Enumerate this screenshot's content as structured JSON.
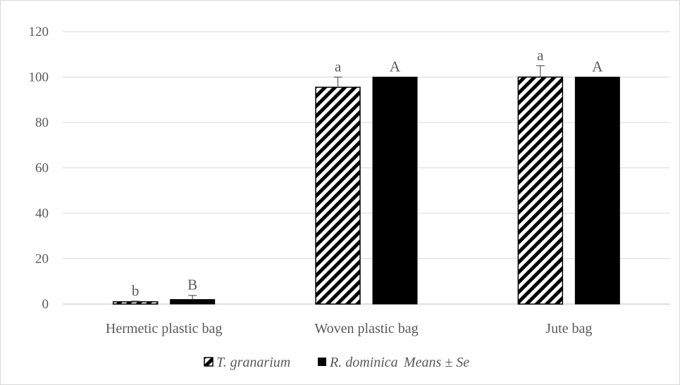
{
  "chart_data": {
    "type": "bar",
    "title": "",
    "xlabel": "",
    "ylabel": "",
    "ylim": [
      0,
      120
    ],
    "yticks": [
      0,
      20,
      40,
      60,
      80,
      100,
      120
    ],
    "grid": true,
    "legend_position": "bottom",
    "categories": [
      "Hermetic plastic bag",
      "Woven plastic bag",
      "Jute bag"
    ],
    "series": [
      {
        "name": "T. granarium",
        "pattern": "hatched",
        "values": [
          1.0,
          95.5,
          100
        ],
        "errors": [
          0.3,
          4.5,
          5.0
        ],
        "labels": [
          "b",
          "a",
          "a"
        ]
      },
      {
        "name": "R. dominica",
        "pattern": "solid",
        "color": "#000000",
        "values": [
          2.0,
          100,
          100
        ],
        "errors": [
          1.8,
          0,
          0
        ],
        "labels": [
          "B",
          "A",
          "A"
        ]
      }
    ],
    "legend_note": "Means ± Se"
  }
}
